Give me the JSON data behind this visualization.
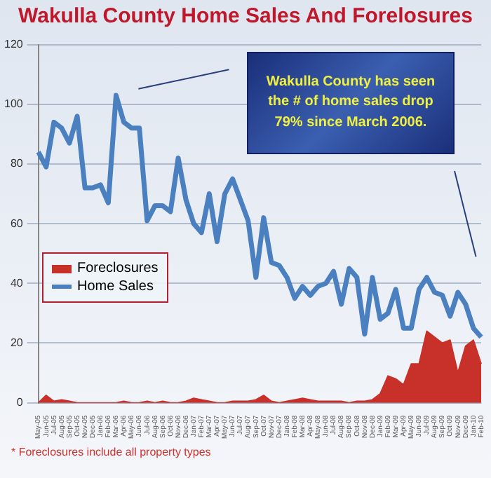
{
  "chart_data": {
    "type": "line",
    "title": "Wakulla County Home Sales And Forelosures",
    "categories": [
      "May-05",
      "Jun-05",
      "Jul-05",
      "Aug-05",
      "Sep-05",
      "Oct-05",
      "Nov-05",
      "Dec-05",
      "Jan-06",
      "Feb-06",
      "Mar-06",
      "Apr-06",
      "May-06",
      "Jun-06",
      "Jul-06",
      "Aug-06",
      "Sep-06",
      "Oct-06",
      "Nov-06",
      "Dec-06",
      "Jan-07",
      "Feb-07",
      "Mar-07",
      "Apr-07",
      "May-07",
      "Jun-07",
      "Jul-07",
      "Aug-07",
      "Sep-07",
      "Oct-07",
      "Nov-07",
      "Dec-07",
      "Jan-08",
      "Feb-08",
      "Mar-08",
      "Apr-08",
      "May-08",
      "Jun-08",
      "Jul-08",
      "Aug-08",
      "Sep-08",
      "Oct-08",
      "Nov-08",
      "Dec-08",
      "Jan-09",
      "Feb-09",
      "Mar-09",
      "Apr-09",
      "May-09",
      "Jun-09",
      "Jul-09",
      "Aug-09",
      "Sep-09",
      "Oct-09",
      "Nov-09",
      "Dec-09",
      "Jan-10",
      "Feb-10"
    ],
    "series": [
      {
        "name": "Foreclosures",
        "type": "area",
        "color": "#c8302a",
        "values": [
          0,
          2.5,
          0.5,
          1,
          0.5,
          0,
          0,
          0,
          0,
          0,
          0,
          0.5,
          0,
          0,
          0.5,
          0,
          0.5,
          0,
          0,
          0.5,
          1.5,
          1,
          0.5,
          0,
          0,
          0.5,
          0.5,
          0.5,
          1,
          2.5,
          0.5,
          0,
          0.5,
          1,
          1.5,
          1,
          0.5,
          0.5,
          0.5,
          0.5,
          0,
          0.5,
          0.5,
          1,
          3,
          9,
          8,
          6,
          13,
          13,
          24,
          22,
          20,
          21,
          10,
          19,
          21,
          13
        ]
      },
      {
        "name": "Home Sales",
        "type": "line",
        "color": "#4a7fc0",
        "values": [
          84,
          79,
          94,
          92,
          87,
          96,
          72,
          72,
          73,
          67,
          103,
          94,
          92,
          92,
          61,
          66,
          66,
          64,
          82,
          68,
          60,
          57,
          70,
          54,
          70,
          75,
          68,
          61,
          42,
          62,
          47,
          46,
          42,
          35,
          39,
          36,
          39,
          40,
          44,
          33,
          45,
          42,
          23,
          42,
          28,
          30,
          38,
          25,
          25,
          38,
          42,
          37,
          36,
          29,
          37,
          33,
          25,
          22
        ]
      }
    ],
    "ylim": [
      0,
      120
    ],
    "yticks": [
      0,
      20,
      40,
      60,
      80,
      100,
      120
    ],
    "grid": "y",
    "legend": "left",
    "marker": "none",
    "annotations": [
      "Wakulla County has seen the # of home sales drop 79% since March 2006.",
      "* Foreclosures include all property types"
    ]
  }
}
